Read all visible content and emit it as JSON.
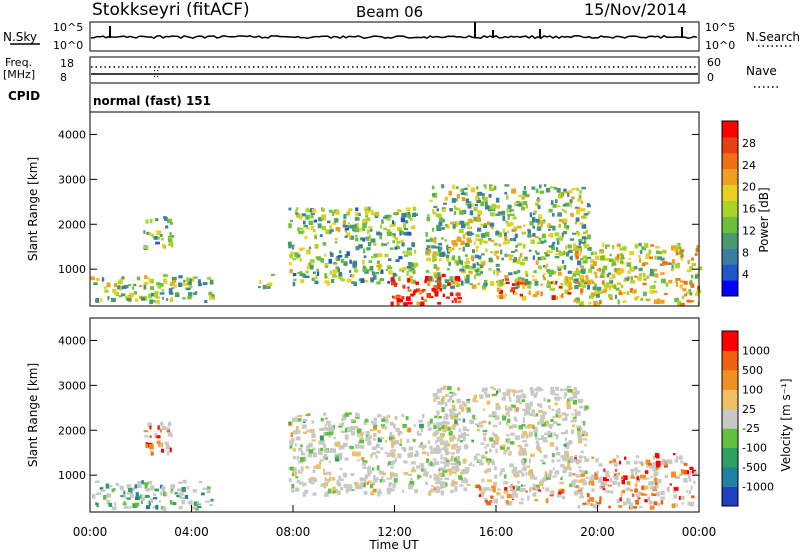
{
  "header": {
    "station": "Stokkseyri (fitACF)",
    "beam": "Beam 06",
    "date": "15/Nov/2014"
  },
  "strips": {
    "nsky_label": "N.Sky",
    "nsearch_label": "N.Search",
    "noise_tick_top": "10^5",
    "noise_tick_bottom": "10^0",
    "freq_label": "Freq.",
    "freq_unit": "[MHz]",
    "freq_tick_top": "18",
    "freq_tick_bottom": "8",
    "nave_label": "Nave",
    "nave_tick_top": "60",
    "nave_tick_bottom": "0",
    "cpid_label": "CPID",
    "cpid_value": "normal (fast) 151"
  },
  "colors": {
    "noise_line": "#000000",
    "freq_marker": "#000000",
    "background_scatter": "#c8c8c4",
    "background": "#ffffff"
  },
  "chart_data": [
    {
      "type": "heatmap",
      "name": "power",
      "ylabel": "Slant Range [km]",
      "ylim": [
        180,
        4500
      ],
      "xlim": [
        0,
        24
      ],
      "yticks": [
        "1000",
        "2000",
        "3000",
        "4000"
      ],
      "colorbar_label": "Power [dB]",
      "colorbar_ticks": [
        "4",
        "8",
        "12",
        "16",
        "20",
        "24",
        "28"
      ],
      "colorbar_colors": [
        "#0000ff",
        "#2255c8",
        "#3a7ea0",
        "#4a9a70",
        "#6cbf3c",
        "#a8d428",
        "#e8d020",
        "#f0a020",
        "#f07018",
        "#e84010",
        "#ff0000"
      ],
      "regions": [
        {
          "x": [
            0.0,
            4.8
          ],
          "y": [
            300,
            900
          ],
          "level": 0.45
        },
        {
          "x": [
            2.1,
            3.2
          ],
          "y": [
            1500,
            2200
          ],
          "level": 0.35
        },
        {
          "x": [
            6.6,
            7.2
          ],
          "y": [
            600,
            900
          ],
          "level": 0.5
        },
        {
          "x": [
            7.8,
            12.8
          ],
          "y": [
            700,
            2400
          ],
          "level": 0.4
        },
        {
          "x": [
            11.8,
            14.6
          ],
          "y": [
            250,
            900
          ],
          "level": 0.95
        },
        {
          "x": [
            13.2,
            19.6
          ],
          "y": [
            600,
            2900
          ],
          "level": 0.45
        },
        {
          "x": [
            16.0,
            19.0
          ],
          "y": [
            400,
            800
          ],
          "level": 0.75
        },
        {
          "x": [
            19.0,
            24.0
          ],
          "y": [
            250,
            1600
          ],
          "level": 0.55
        }
      ]
    },
    {
      "type": "heatmap",
      "name": "velocity",
      "ylabel": "Slant Range [km]",
      "xlabel": "Time UT",
      "ylim": [
        180,
        4500
      ],
      "xlim": [
        0,
        24
      ],
      "yticks": [
        "1000",
        "2000",
        "3000",
        "4000"
      ],
      "xticks": [
        "00:00",
        "04:00",
        "08:00",
        "12:00",
        "16:00",
        "20:00",
        "00:00"
      ],
      "colorbar_label": "Velocity [m s⁻¹]",
      "colorbar_ticks": [
        "1000",
        "500",
        "100",
        "25",
        "-25",
        "-100",
        "-500",
        "-1000"
      ],
      "colorbar_colors": [
        "#2040c0",
        "#2080a0",
        "#30a060",
        "#60c040",
        "#c8c8c4",
        "#f0c060",
        "#f09020",
        "#f06010",
        "#ff0000"
      ],
      "regions": [
        {
          "x": [
            0.0,
            4.8
          ],
          "y": [
            300,
            900
          ],
          "level": 0.3
        },
        {
          "x": [
            2.1,
            3.2
          ],
          "y": [
            1500,
            2200
          ],
          "level": 0.85
        },
        {
          "x": [
            7.8,
            14.5
          ],
          "y": [
            600,
            2400
          ],
          "level": 0.5
        },
        {
          "x": [
            13.5,
            19.5
          ],
          "y": [
            700,
            3000
          ],
          "level": 0.5
        },
        {
          "x": [
            15.0,
            18.6
          ],
          "y": [
            400,
            800
          ],
          "level": 0.8
        },
        {
          "x": [
            19.0,
            23.8
          ],
          "y": [
            300,
            1500
          ],
          "level": 0.8
        }
      ]
    }
  ]
}
